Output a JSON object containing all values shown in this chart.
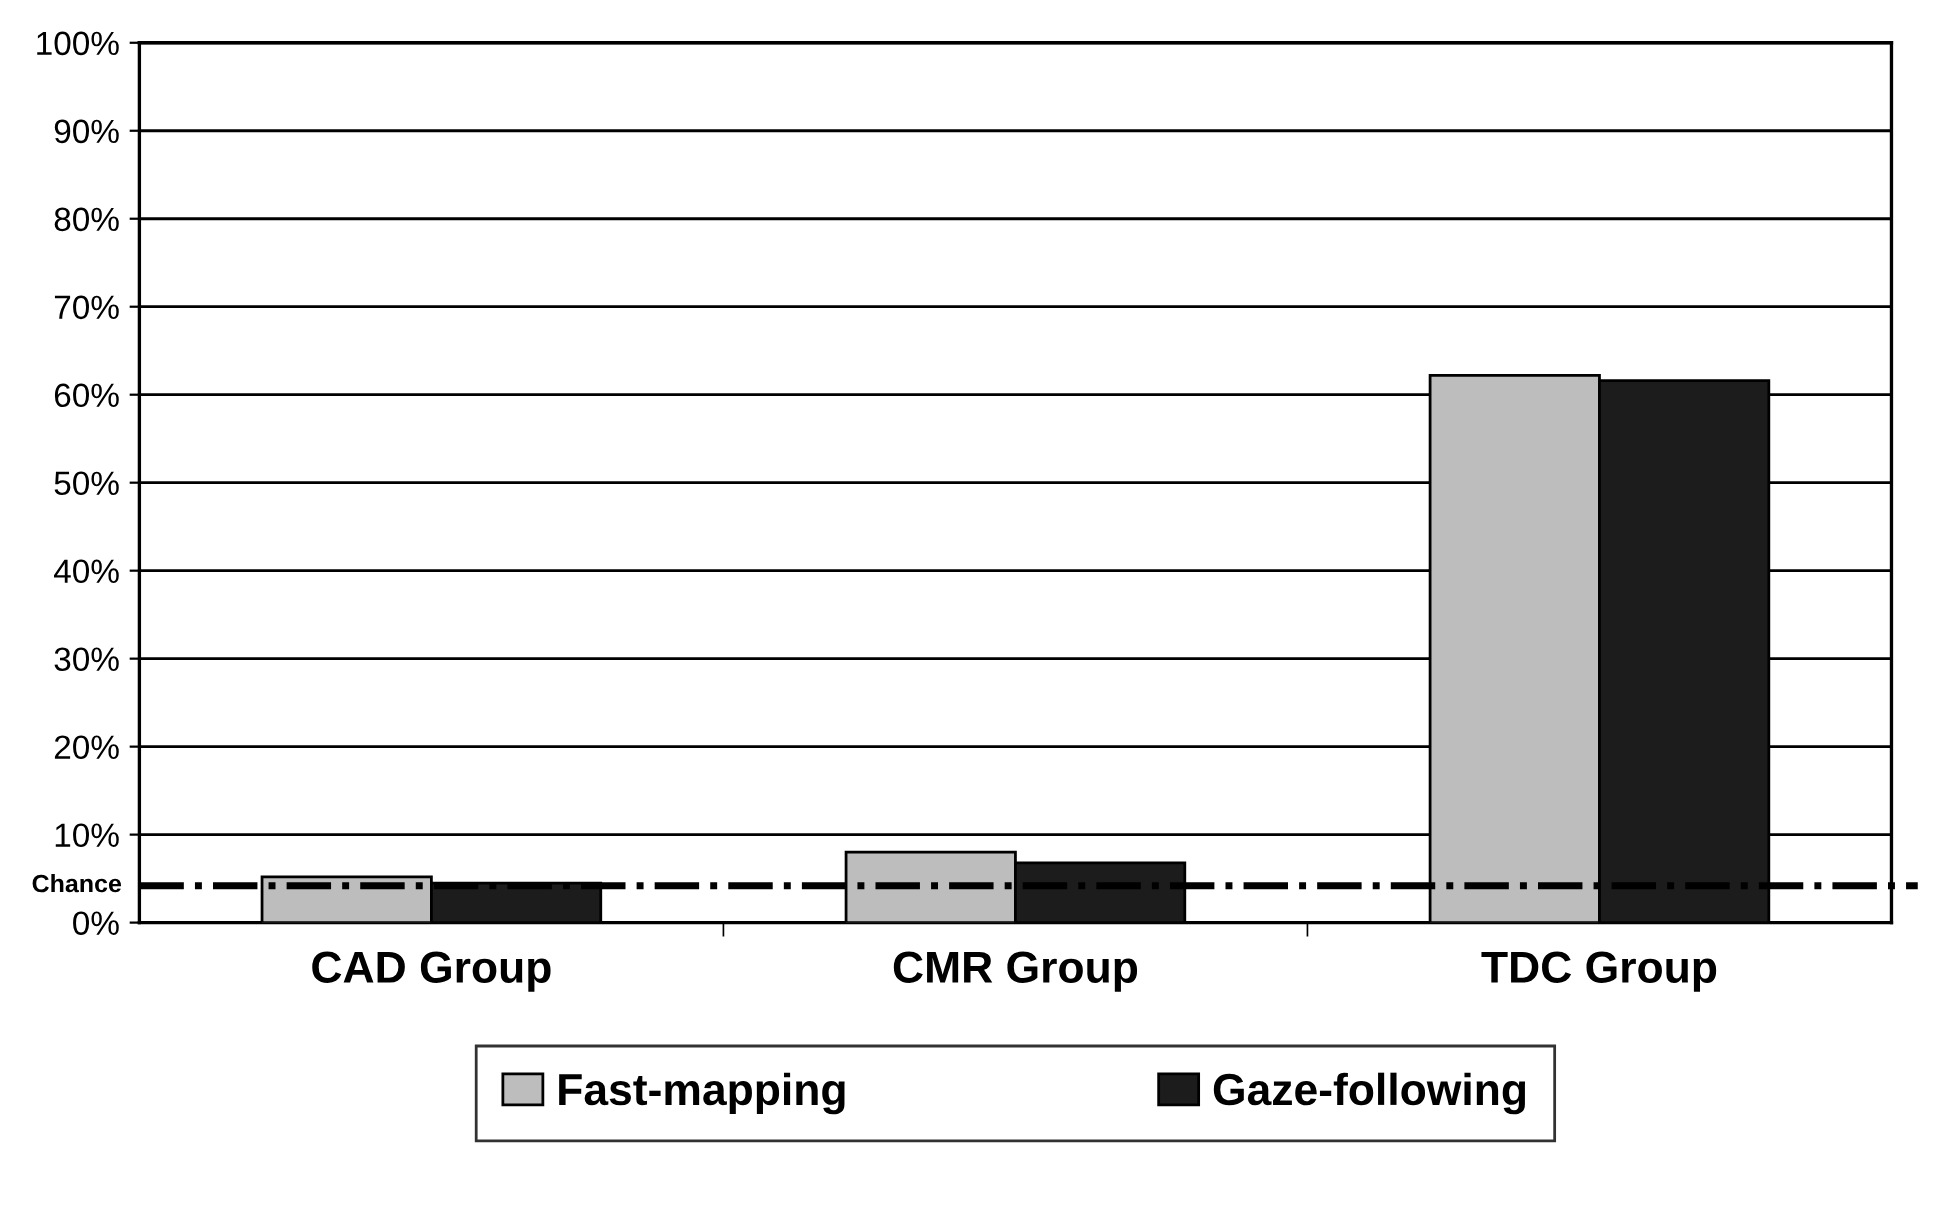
{
  "chart_data": {
    "type": "bar",
    "categories": [
      "CAD Group",
      "CMR Group",
      "TDC Group"
    ],
    "series": [
      {
        "name": "Fast-mapping",
        "color": "#bdbdbd",
        "values": [
          5.2,
          8.0,
          62.2
        ]
      },
      {
        "name": "Gaze-following",
        "color": "#1c1c1c",
        "values": [
          4.5,
          6.8,
          61.6
        ]
      }
    ],
    "ylim": [
      0,
      100
    ],
    "yticks": [
      {
        "value": 0,
        "label": "0%"
      },
      {
        "value": 10,
        "label": "10%"
      },
      {
        "value": 20,
        "label": "20%"
      },
      {
        "value": 30,
        "label": "30%"
      },
      {
        "value": 40,
        "label": "40%"
      },
      {
        "value": 50,
        "label": "50%"
      },
      {
        "value": 60,
        "label": "60%"
      },
      {
        "value": 70,
        "label": "70%"
      },
      {
        "value": 80,
        "label": "80%"
      },
      {
        "value": 90,
        "label": "90%"
      },
      {
        "value": 100,
        "label": "100%"
      }
    ],
    "ref_lines": [
      {
        "axis": "y",
        "value": 4.2,
        "label": "Chance",
        "color": "#000000",
        "line_style": "dashdot"
      }
    ],
    "grid": "y",
    "legend": "bottom"
  }
}
